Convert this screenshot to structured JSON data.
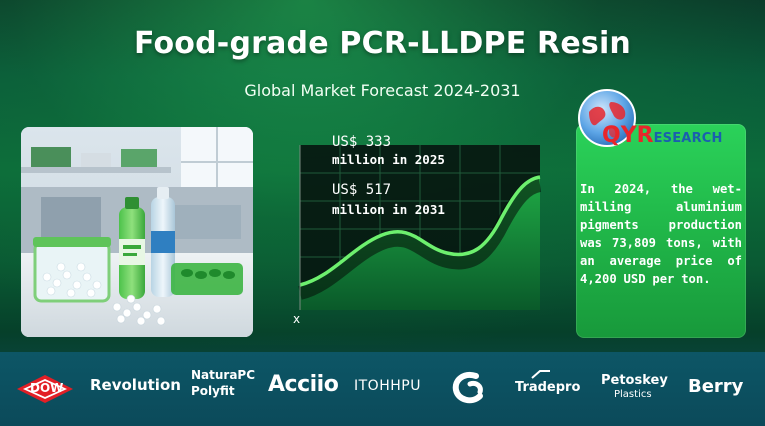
{
  "header": {
    "title": "Food-grade PCR-LLDPE Resin",
    "subtitle": "Global Market Forecast 2024-2031"
  },
  "chart": {
    "label_2025_line1": "US$ 333",
    "label_2025_line2": "million in 2025",
    "label_2031_line1": "US$ 517",
    "label_2031_line2": "million in 2031",
    "axis_x_marker": "x"
  },
  "chart_data": {
    "type": "area",
    "title": "",
    "annotations": [
      "US$ 333 million in 2025",
      "US$ 517 million in 2031"
    ],
    "values_usd_million": {
      "2025": 333,
      "2031": 517
    }
  },
  "qyr": {
    "logo_q": "QYR",
    "logo_rest": "ESEARCH",
    "note": "In 2024, the wet-milling aluminium pigments production was 73,809 tons, with an average price of 4,200 USD per ton."
  },
  "logos": {
    "dow": "DOW",
    "revolution": "Revolution",
    "naturapc_line1": "NaturaPC",
    "naturapc_line2": "Polyfit",
    "accio": "Acciio",
    "itohhpu": "ITOHHPU",
    "tradepro": "Tradepro",
    "petoskey_line1": "Petoskey",
    "petoskey_line2": "Plastics",
    "berry": "Berry"
  },
  "colors": {
    "accent_green": "#2fd160",
    "chart_line": "#6df06e",
    "dow_red": "#e21f26",
    "qyr_red": "#e8262b",
    "qyr_blue": "#1a5fae"
  },
  "icons": {
    "globe": "globe-icon",
    "bottle": "bottle-icon",
    "pellets": "pellets-icon",
    "tradepro_mark": "tradepro-mark-icon"
  }
}
